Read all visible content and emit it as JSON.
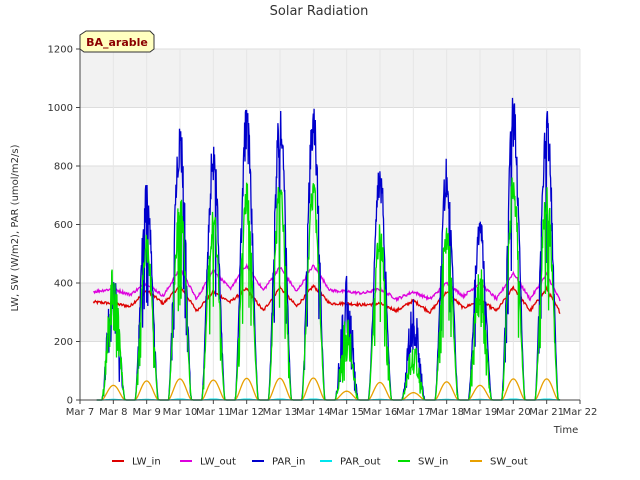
{
  "chart_data": {
    "type": "line",
    "title": "Solar Radiation",
    "xlabel": "Time",
    "ylabel": "LW, SW (W/m2), PAR (umol/m2/s)",
    "site_badge": "BA_arable",
    "ylim": [
      0,
      1200
    ],
    "yticks": [
      0,
      200,
      400,
      600,
      800,
      1000,
      1200
    ],
    "xlim": [
      7,
      22
    ],
    "xticks": [
      7,
      8,
      9,
      10,
      11,
      12,
      13,
      14,
      15,
      16,
      17,
      18,
      19,
      20,
      21,
      22
    ],
    "xtick_labels": [
      "Mar 7",
      "Mar 8",
      "Mar 9",
      "Mar 10",
      "Mar 11",
      "Mar 12",
      "Mar 13",
      "Mar 14",
      "Mar 15",
      "Mar 16",
      "Mar 17",
      "Mar 18",
      "Mar 19",
      "Mar 20",
      "Mar 21",
      "Mar 22"
    ],
    "grid": true,
    "legend_position": "bottom",
    "days": [
      8,
      9,
      10,
      11,
      12,
      13,
      14,
      15,
      16,
      17,
      18,
      19,
      20,
      21
    ],
    "series": [
      {
        "name": "LW_in",
        "color": "#dd0000",
        "kind": "smooth",
        "x": [
          7.4,
          8.0,
          8.5,
          9.0,
          9.5,
          10.0,
          10.5,
          11.0,
          11.5,
          12.0,
          12.5,
          13.0,
          13.5,
          14.0,
          14.5,
          15.0,
          15.5,
          16.0,
          16.5,
          17.0,
          17.5,
          18.0,
          18.5,
          19.0,
          19.5,
          20.0,
          20.5,
          21.0,
          21.4
        ],
        "y": [
          335,
          330,
          320,
          375,
          330,
          390,
          305,
          370,
          335,
          380,
          305,
          385,
          320,
          390,
          330,
          330,
          325,
          330,
          305,
          340,
          300,
          370,
          315,
          340,
          305,
          385,
          305,
          380,
          300
        ]
      },
      {
        "name": "LW_out",
        "color": "#dd00dd",
        "kind": "smooth",
        "x": [
          7.4,
          8.0,
          8.5,
          9.0,
          9.5,
          10.0,
          10.5,
          11.0,
          11.5,
          12.0,
          12.5,
          13.0,
          13.5,
          14.0,
          14.5,
          15.0,
          15.5,
          16.0,
          16.5,
          17.0,
          17.5,
          18.0,
          18.5,
          19.0,
          19.5,
          20.0,
          20.5,
          21.0,
          21.4
        ],
        "y": [
          370,
          380,
          360,
          400,
          355,
          450,
          345,
          445,
          380,
          460,
          375,
          455,
          370,
          460,
          375,
          370,
          365,
          380,
          345,
          370,
          345,
          400,
          355,
          400,
          345,
          435,
          345,
          430,
          340
        ]
      },
      {
        "name": "PAR_in",
        "color": "#0000cc",
        "kind": "diurnal",
        "peaks": [
          480,
          760,
          975,
          900,
          1015,
          1025,
          1025,
          445,
          820,
          350,
          830,
          640,
          1050,
          1035
        ]
      },
      {
        "name": "PAR_out",
        "color": "#00e5ee",
        "kind": "diurnal",
        "peaks": [
          2,
          2,
          3,
          3,
          3,
          3,
          3,
          1,
          2,
          1,
          2,
          2,
          3,
          3
        ]
      },
      {
        "name": "SW_in",
        "color": "#00dd00",
        "kind": "diurnal",
        "peaks": [
          480,
          570,
          720,
          670,
          755,
          760,
          760,
          290,
          605,
          200,
          610,
          470,
          780,
          765
        ]
      },
      {
        "name": "SW_out",
        "color": "#e8a000",
        "kind": "diurnal",
        "peaks": [
          50,
          65,
          72,
          68,
          74,
          74,
          75,
          30,
          60,
          25,
          62,
          50,
          72,
          72
        ]
      }
    ]
  }
}
